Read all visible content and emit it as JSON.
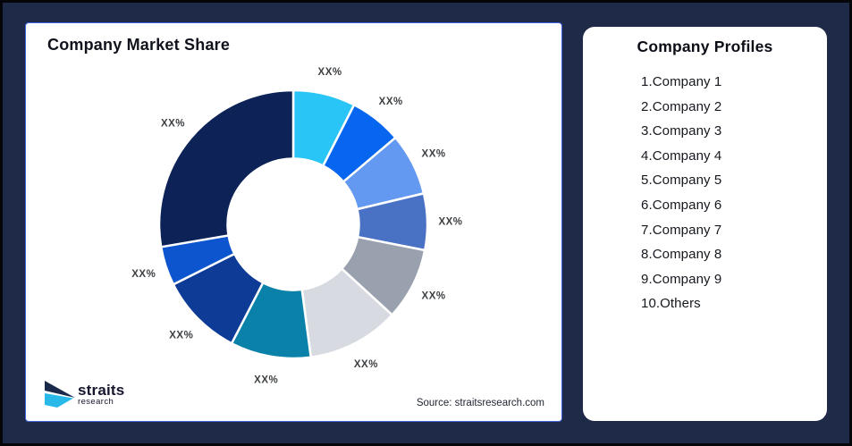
{
  "frame": {
    "background_color": "#1E2A47",
    "border_color": "#05060A"
  },
  "chart_panel": {
    "title": "Company Market Share",
    "source": "Source: straitsresearch.com",
    "border_color": "#3E63DE"
  },
  "logo": {
    "brand": "straits",
    "sub": "research",
    "navy_color": "#1B2A4A",
    "cyan_color": "#29B9E8"
  },
  "profiles_panel": {
    "title": "Company Profiles",
    "items": [
      "1.Company 1",
      "2.Company 2",
      "3.Company 3",
      "4.Company 4",
      "5.Company 5",
      "6.Company 6",
      "7.Company 7",
      "8.Company 8",
      "9.Company 9",
      "10.Others"
    ]
  },
  "chart_data": {
    "type": "pie",
    "subtype": "donut",
    "title": "Company Market Share",
    "categories": [
      "Company 1",
      "Company 2",
      "Company 3",
      "Company 4",
      "Company 5",
      "Company 6",
      "Company 7",
      "Company 8",
      "Company 9",
      "Others"
    ],
    "values": [
      7.5,
      6.3,
      7.5,
      6.8,
      8.7,
      11.1,
      9.7,
      10.0,
      4.7,
      27.7
    ],
    "value_labels": [
      "XX%",
      "XX%",
      "XX%",
      "XX%",
      "XX%",
      "XX%",
      "XX%",
      "XX%",
      "XX%",
      "XX%"
    ],
    "colors": [
      "#29C5F6",
      "#0766F0",
      "#6499F2",
      "#4A72C4",
      "#99A0AE",
      "#D7DAE1",
      "#0981A8",
      "#0D3B96",
      "#0D55CE",
      "#0D2357"
    ],
    "start_angle_deg": 0,
    "direction": "clockwise",
    "inner_radius_ratio": 0.49,
    "outer_radius_px": 150,
    "label_radius_px": 176,
    "legend_position": "none",
    "label_color": "#3C4043",
    "segment_gap_color": "#FFFFFF"
  }
}
